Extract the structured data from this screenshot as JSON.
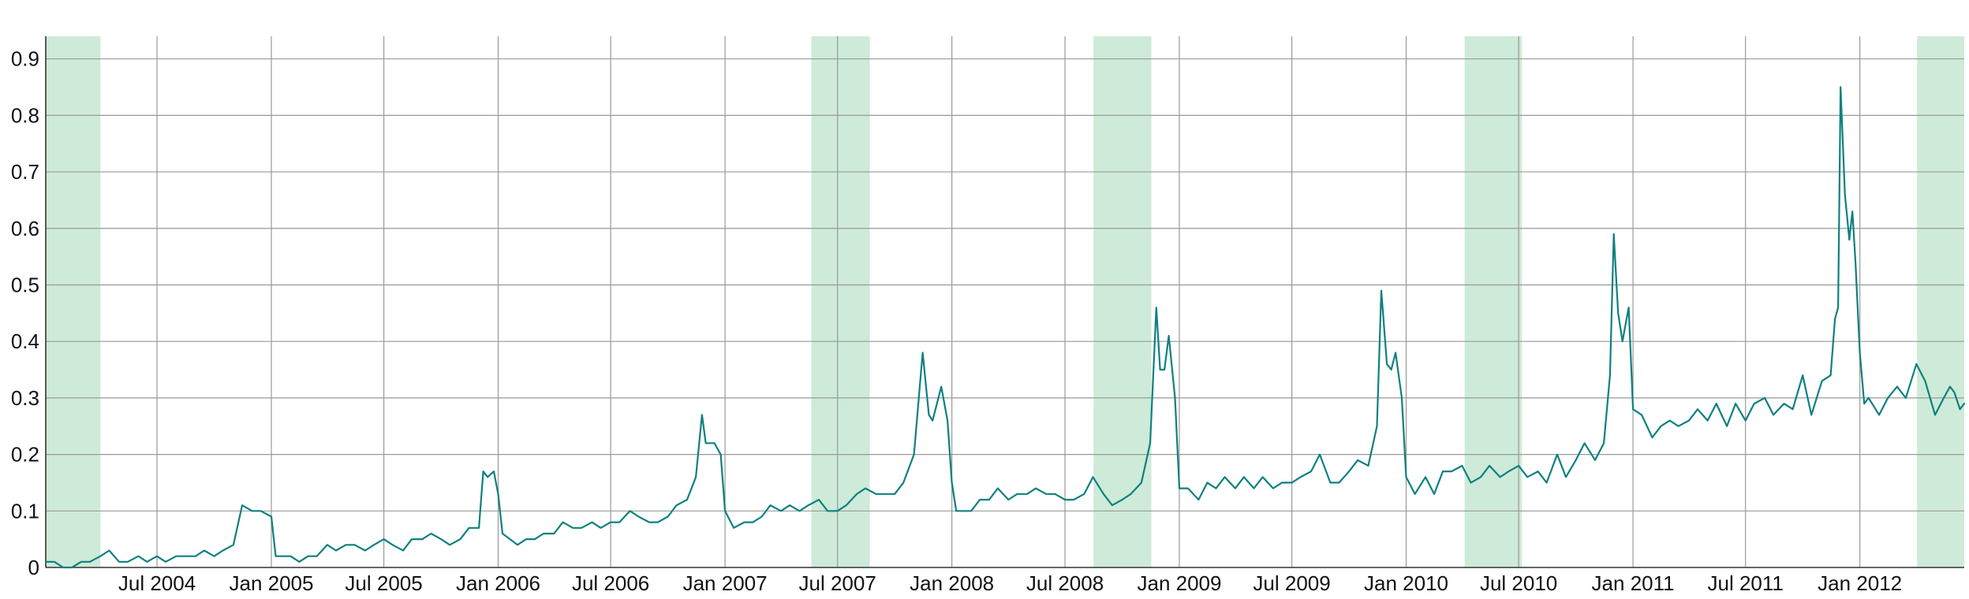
{
  "chart_data": {
    "type": "line",
    "title": "",
    "xlabel": "",
    "ylabel": "",
    "ylim": [
      0,
      0.94
    ],
    "xlim": [
      "2004-01-04",
      "2012-06-17"
    ],
    "grid": true,
    "legend": "none",
    "colors": {
      "line": "#0f8080",
      "band": "#cdebd8",
      "grid": "#999999",
      "axis": "#333333"
    },
    "x_ticks": [
      {
        "date": "2004-07-01",
        "label": "Jul 2004"
      },
      {
        "date": "2005-01-01",
        "label": "Jan 2005"
      },
      {
        "date": "2005-07-01",
        "label": "Jul 2005"
      },
      {
        "date": "2006-01-01",
        "label": "Jan 2006"
      },
      {
        "date": "2006-07-01",
        "label": "Jul 2006"
      },
      {
        "date": "2007-01-01",
        "label": "Jan 2007"
      },
      {
        "date": "2007-07-01",
        "label": "Jul 2007"
      },
      {
        "date": "2008-01-01",
        "label": "Jan 2008"
      },
      {
        "date": "2008-07-01",
        "label": "Jul 2008"
      },
      {
        "date": "2009-01-01",
        "label": "Jan 2009"
      },
      {
        "date": "2009-07-01",
        "label": "Jul 2009"
      },
      {
        "date": "2010-01-01",
        "label": "Jan 2010"
      },
      {
        "date": "2010-07-01",
        "label": "Jul 2010"
      },
      {
        "date": "2011-01-01",
        "label": "Jan 2011"
      },
      {
        "date": "2011-07-01",
        "label": "Jul 2011"
      },
      {
        "date": "2012-01-01",
        "label": "Jan 2012"
      }
    ],
    "y_ticks": [
      {
        "value": 0,
        "label": "0"
      },
      {
        "value": 0.1,
        "label": "0.1"
      },
      {
        "value": 0.2,
        "label": "0.2"
      },
      {
        "value": 0.3,
        "label": "0.3"
      },
      {
        "value": 0.4,
        "label": "0.4"
      },
      {
        "value": 0.5,
        "label": "0.5"
      },
      {
        "value": 0.6,
        "label": "0.6"
      },
      {
        "value": 0.7,
        "label": "0.7"
      },
      {
        "value": 0.8,
        "label": "0.8"
      },
      {
        "value": 0.9,
        "label": "0.9"
      }
    ],
    "shaded_bands": [
      {
        "start": "2004-01-04",
        "end": "2004-04-01"
      },
      {
        "start": "2007-05-20",
        "end": "2007-08-22"
      },
      {
        "start": "2008-08-16",
        "end": "2008-11-17"
      },
      {
        "start": "2010-04-05",
        "end": "2010-07-06"
      },
      {
        "start": "2012-04-02",
        "end": "2012-06-17"
      }
    ],
    "series": [
      {
        "values": [
          [
            "2004-01-04",
            0.01
          ],
          [
            "2004-01-18",
            0.01
          ],
          [
            "2004-02-01",
            0.0
          ],
          [
            "2004-02-15",
            0.0
          ],
          [
            "2004-03-01",
            0.01
          ],
          [
            "2004-03-15",
            0.01
          ],
          [
            "2004-04-01",
            0.02
          ],
          [
            "2004-04-15",
            0.03
          ],
          [
            "2004-05-01",
            0.01
          ],
          [
            "2004-05-15",
            0.01
          ],
          [
            "2004-06-01",
            0.02
          ],
          [
            "2004-06-15",
            0.01
          ],
          [
            "2004-07-01",
            0.02
          ],
          [
            "2004-07-15",
            0.01
          ],
          [
            "2004-08-01",
            0.02
          ],
          [
            "2004-08-15",
            0.02
          ],
          [
            "2004-09-01",
            0.02
          ],
          [
            "2004-09-15",
            0.03
          ],
          [
            "2004-10-01",
            0.02
          ],
          [
            "2004-10-15",
            0.03
          ],
          [
            "2004-11-01",
            0.04
          ],
          [
            "2004-11-15",
            0.11
          ],
          [
            "2004-12-01",
            0.1
          ],
          [
            "2004-12-15",
            0.1
          ],
          [
            "2005-01-01",
            0.09
          ],
          [
            "2005-01-08",
            0.02
          ],
          [
            "2005-02-01",
            0.02
          ],
          [
            "2005-02-15",
            0.01
          ],
          [
            "2005-03-01",
            0.02
          ],
          [
            "2005-03-15",
            0.02
          ],
          [
            "2005-04-01",
            0.04
          ],
          [
            "2005-04-15",
            0.03
          ],
          [
            "2005-05-01",
            0.04
          ],
          [
            "2005-05-15",
            0.04
          ],
          [
            "2005-06-01",
            0.03
          ],
          [
            "2005-06-15",
            0.04
          ],
          [
            "2005-07-01",
            0.05
          ],
          [
            "2005-07-15",
            0.04
          ],
          [
            "2005-08-01",
            0.03
          ],
          [
            "2005-08-15",
            0.05
          ],
          [
            "2005-09-01",
            0.05
          ],
          [
            "2005-09-15",
            0.06
          ],
          [
            "2005-10-01",
            0.05
          ],
          [
            "2005-10-15",
            0.04
          ],
          [
            "2005-11-01",
            0.05
          ],
          [
            "2005-11-15",
            0.07
          ],
          [
            "2005-12-01",
            0.07
          ],
          [
            "2005-12-08",
            0.17
          ],
          [
            "2005-12-15",
            0.16
          ],
          [
            "2005-12-25",
            0.17
          ],
          [
            "2006-01-01",
            0.13
          ],
          [
            "2006-01-08",
            0.06
          ],
          [
            "2006-02-01",
            0.04
          ],
          [
            "2006-02-15",
            0.05
          ],
          [
            "2006-03-01",
            0.05
          ],
          [
            "2006-03-15",
            0.06
          ],
          [
            "2006-04-01",
            0.06
          ],
          [
            "2006-04-15",
            0.08
          ],
          [
            "2006-05-01",
            0.07
          ],
          [
            "2006-05-15",
            0.07
          ],
          [
            "2006-06-01",
            0.08
          ],
          [
            "2006-06-15",
            0.07
          ],
          [
            "2006-07-01",
            0.08
          ],
          [
            "2006-07-15",
            0.08
          ],
          [
            "2006-08-01",
            0.1
          ],
          [
            "2006-08-15",
            0.09
          ],
          [
            "2006-09-01",
            0.08
          ],
          [
            "2006-09-15",
            0.08
          ],
          [
            "2006-10-01",
            0.09
          ],
          [
            "2006-10-15",
            0.11
          ],
          [
            "2006-11-01",
            0.12
          ],
          [
            "2006-11-15",
            0.16
          ],
          [
            "2006-11-25",
            0.27
          ],
          [
            "2006-12-01",
            0.22
          ],
          [
            "2006-12-15",
            0.22
          ],
          [
            "2006-12-25",
            0.2
          ],
          [
            "2007-01-01",
            0.1
          ],
          [
            "2007-01-15",
            0.07
          ],
          [
            "2007-02-01",
            0.08
          ],
          [
            "2007-02-15",
            0.08
          ],
          [
            "2007-03-01",
            0.09
          ],
          [
            "2007-03-15",
            0.11
          ],
          [
            "2007-04-01",
            0.1
          ],
          [
            "2007-04-15",
            0.11
          ],
          [
            "2007-05-01",
            0.1
          ],
          [
            "2007-05-15",
            0.11
          ],
          [
            "2007-06-01",
            0.12
          ],
          [
            "2007-06-15",
            0.1
          ],
          [
            "2007-07-01",
            0.1
          ],
          [
            "2007-07-15",
            0.11
          ],
          [
            "2007-08-01",
            0.13
          ],
          [
            "2007-08-15",
            0.14
          ],
          [
            "2007-09-01",
            0.13
          ],
          [
            "2007-09-15",
            0.13
          ],
          [
            "2007-10-01",
            0.13
          ],
          [
            "2007-10-15",
            0.15
          ],
          [
            "2007-11-01",
            0.2
          ],
          [
            "2007-11-15",
            0.38
          ],
          [
            "2007-11-25",
            0.27
          ],
          [
            "2007-12-01",
            0.26
          ],
          [
            "2007-12-15",
            0.32
          ],
          [
            "2007-12-25",
            0.26
          ],
          [
            "2008-01-01",
            0.15
          ],
          [
            "2008-01-08",
            0.1
          ],
          [
            "2008-02-01",
            0.1
          ],
          [
            "2008-02-15",
            0.12
          ],
          [
            "2008-03-01",
            0.12
          ],
          [
            "2008-03-15",
            0.14
          ],
          [
            "2008-04-01",
            0.12
          ],
          [
            "2008-04-15",
            0.13
          ],
          [
            "2008-05-01",
            0.13
          ],
          [
            "2008-05-15",
            0.14
          ],
          [
            "2008-06-01",
            0.13
          ],
          [
            "2008-06-15",
            0.13
          ],
          [
            "2008-07-01",
            0.12
          ],
          [
            "2008-07-15",
            0.12
          ],
          [
            "2008-08-01",
            0.13
          ],
          [
            "2008-08-15",
            0.16
          ],
          [
            "2008-09-01",
            0.13
          ],
          [
            "2008-09-15",
            0.11
          ],
          [
            "2008-10-01",
            0.12
          ],
          [
            "2008-10-15",
            0.13
          ],
          [
            "2008-11-01",
            0.15
          ],
          [
            "2008-11-15",
            0.22
          ],
          [
            "2008-11-25",
            0.46
          ],
          [
            "2008-12-01",
            0.35
          ],
          [
            "2008-12-08",
            0.35
          ],
          [
            "2008-12-15",
            0.41
          ],
          [
            "2008-12-25",
            0.3
          ],
          [
            "2009-01-01",
            0.14
          ],
          [
            "2009-01-15",
            0.14
          ],
          [
            "2009-02-01",
            0.12
          ],
          [
            "2009-02-15",
            0.15
          ],
          [
            "2009-03-01",
            0.14
          ],
          [
            "2009-03-15",
            0.16
          ],
          [
            "2009-04-01",
            0.14
          ],
          [
            "2009-04-15",
            0.16
          ],
          [
            "2009-05-01",
            0.14
          ],
          [
            "2009-05-15",
            0.16
          ],
          [
            "2009-06-01",
            0.14
          ],
          [
            "2009-06-15",
            0.15
          ],
          [
            "2009-07-01",
            0.15
          ],
          [
            "2009-07-15",
            0.16
          ],
          [
            "2009-08-01",
            0.17
          ],
          [
            "2009-08-15",
            0.2
          ],
          [
            "2009-09-01",
            0.15
          ],
          [
            "2009-09-15",
            0.15
          ],
          [
            "2009-10-01",
            0.17
          ],
          [
            "2009-10-15",
            0.19
          ],
          [
            "2009-11-01",
            0.18
          ],
          [
            "2009-11-15",
            0.25
          ],
          [
            "2009-11-22",
            0.49
          ],
          [
            "2009-12-01",
            0.36
          ],
          [
            "2009-12-08",
            0.35
          ],
          [
            "2009-12-15",
            0.38
          ],
          [
            "2009-12-25",
            0.3
          ],
          [
            "2010-01-01",
            0.16
          ],
          [
            "2010-01-15",
            0.13
          ],
          [
            "2010-02-01",
            0.16
          ],
          [
            "2010-02-15",
            0.13
          ],
          [
            "2010-03-01",
            0.17
          ],
          [
            "2010-03-15",
            0.17
          ],
          [
            "2010-04-01",
            0.18
          ],
          [
            "2010-04-15",
            0.15
          ],
          [
            "2010-05-01",
            0.16
          ],
          [
            "2010-05-15",
            0.18
          ],
          [
            "2010-06-01",
            0.16
          ],
          [
            "2010-06-15",
            0.17
          ],
          [
            "2010-07-01",
            0.18
          ],
          [
            "2010-07-15",
            0.16
          ],
          [
            "2010-08-01",
            0.17
          ],
          [
            "2010-08-15",
            0.15
          ],
          [
            "2010-09-01",
            0.2
          ],
          [
            "2010-09-15",
            0.16
          ],
          [
            "2010-10-01",
            0.19
          ],
          [
            "2010-10-15",
            0.22
          ],
          [
            "2010-11-01",
            0.19
          ],
          [
            "2010-11-15",
            0.22
          ],
          [
            "2010-11-25",
            0.34
          ],
          [
            "2010-12-01",
            0.59
          ],
          [
            "2010-12-08",
            0.45
          ],
          [
            "2010-12-15",
            0.4
          ],
          [
            "2010-12-25",
            0.46
          ],
          [
            "2011-01-01",
            0.28
          ],
          [
            "2011-01-15",
            0.27
          ],
          [
            "2011-02-01",
            0.23
          ],
          [
            "2011-02-15",
            0.25
          ],
          [
            "2011-03-01",
            0.26
          ],
          [
            "2011-03-15",
            0.25
          ],
          [
            "2011-04-01",
            0.26
          ],
          [
            "2011-04-15",
            0.28
          ],
          [
            "2011-05-01",
            0.26
          ],
          [
            "2011-05-15",
            0.29
          ],
          [
            "2011-06-01",
            0.25
          ],
          [
            "2011-06-15",
            0.29
          ],
          [
            "2011-07-01",
            0.26
          ],
          [
            "2011-07-15",
            0.29
          ],
          [
            "2011-08-01",
            0.3
          ],
          [
            "2011-08-15",
            0.27
          ],
          [
            "2011-09-01",
            0.29
          ],
          [
            "2011-09-15",
            0.28
          ],
          [
            "2011-10-01",
            0.34
          ],
          [
            "2011-10-15",
            0.27
          ],
          [
            "2011-11-01",
            0.33
          ],
          [
            "2011-11-15",
            0.34
          ],
          [
            "2011-11-22",
            0.44
          ],
          [
            "2011-11-27",
            0.46
          ],
          [
            "2011-12-01",
            0.85
          ],
          [
            "2011-12-08",
            0.66
          ],
          [
            "2011-12-15",
            0.58
          ],
          [
            "2011-12-20",
            0.63
          ],
          [
            "2011-12-25",
            0.54
          ],
          [
            "2012-01-01",
            0.38
          ],
          [
            "2012-01-08",
            0.29
          ],
          [
            "2012-01-15",
            0.3
          ],
          [
            "2012-02-01",
            0.27
          ],
          [
            "2012-02-15",
            0.3
          ],
          [
            "2012-03-01",
            0.32
          ],
          [
            "2012-03-15",
            0.3
          ],
          [
            "2012-04-01",
            0.36
          ],
          [
            "2012-04-15",
            0.33
          ],
          [
            "2012-05-01",
            0.27
          ],
          [
            "2012-05-15",
            0.3
          ],
          [
            "2012-05-25",
            0.32
          ],
          [
            "2012-06-01",
            0.31
          ],
          [
            "2012-06-10",
            0.28
          ],
          [
            "2012-06-17",
            0.29
          ]
        ]
      }
    ]
  }
}
